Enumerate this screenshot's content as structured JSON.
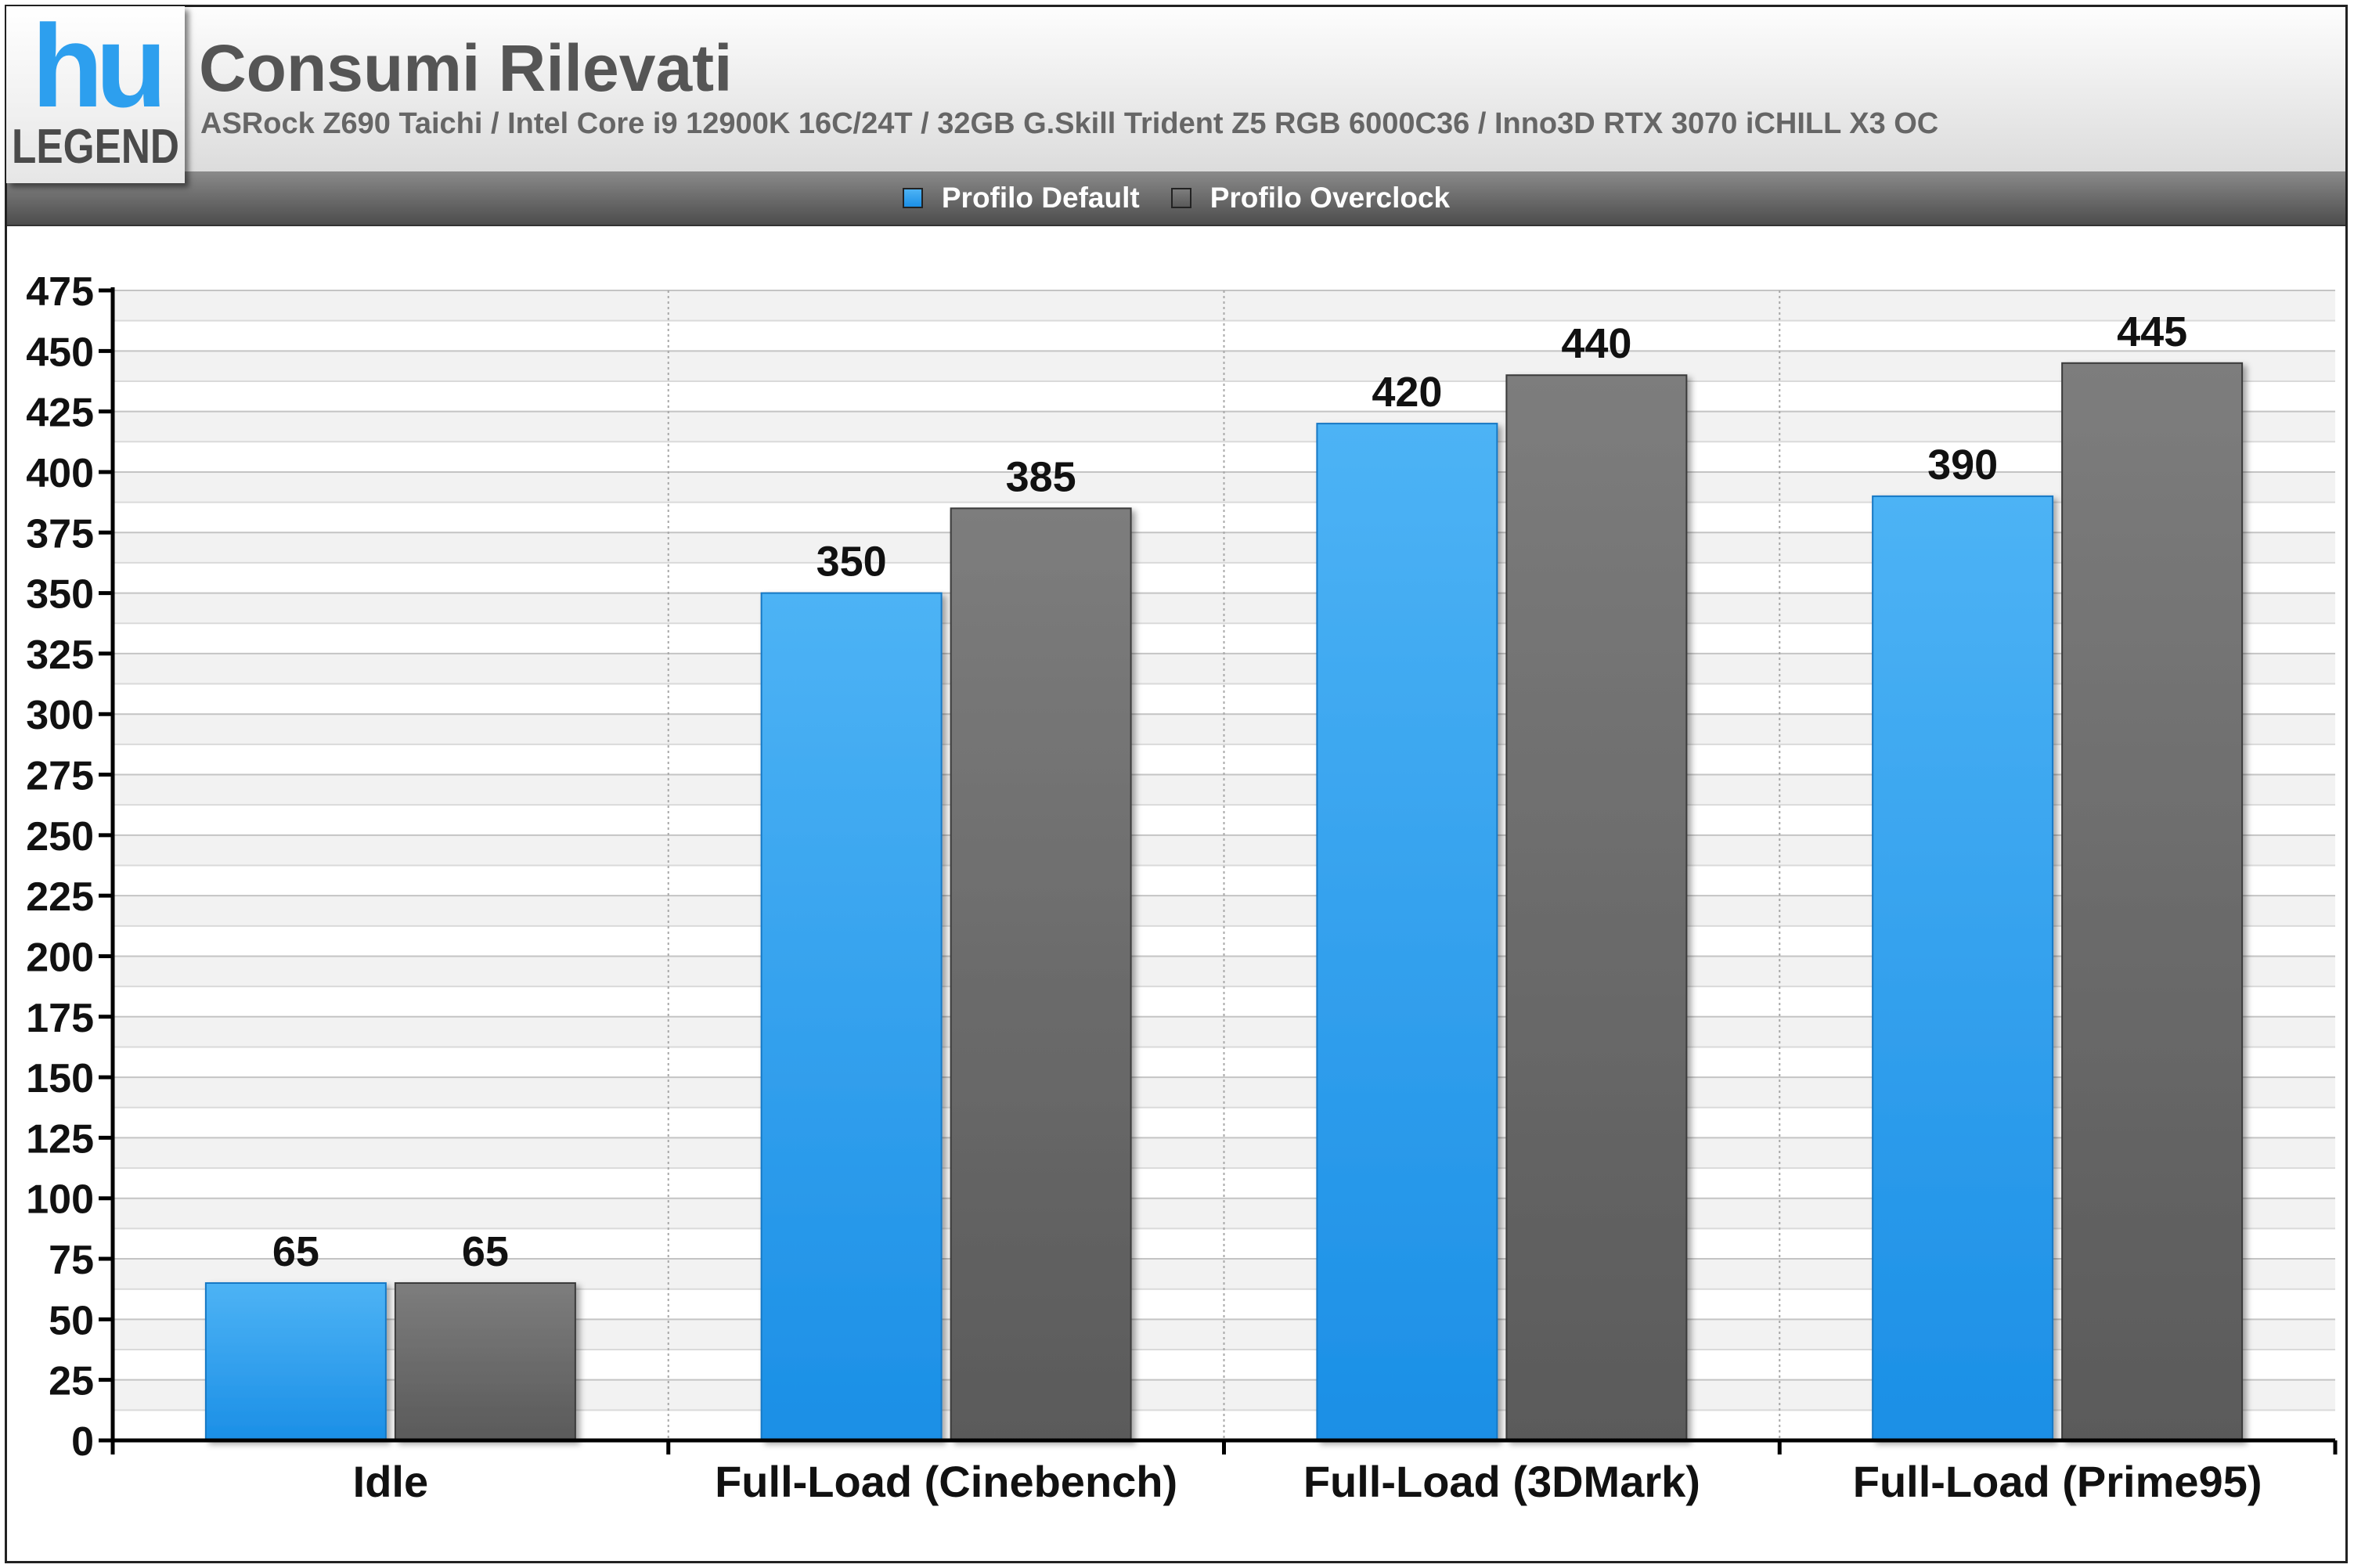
{
  "header": {
    "logo_top": "hu",
    "logo_bottom": "LEGEND",
    "title": "Consumi Rilevati",
    "subtitle": "ASRock Z690 Taichi / Intel Core i9 12900K 16C/24T / 32GB G.Skill Trident Z5 RGB 6000C36 / Inno3D RTX 3070 iCHILL X3 OC"
  },
  "legend": [
    {
      "label": "Profilo Default",
      "color": "#2d9fee"
    },
    {
      "label": "Profilo Overclock",
      "color": "#6e6e6e"
    }
  ],
  "chart_data": {
    "type": "bar",
    "title": "Consumi Rilevati",
    "subtitle": "ASRock Z690 Taichi / Intel Core i9 12900K 16C/24T / 32GB G.Skill Trident Z5 RGB 6000C36 / Inno3D RTX 3070 iCHILL X3 OC",
    "categories": [
      "Idle",
      "Full-Load (Cinebench)",
      "Full-Load (3DMark)",
      "Full-Load (Prime95)"
    ],
    "series": [
      {
        "name": "Profilo Default",
        "values": [
          65,
          350,
          420,
          390
        ],
        "color": "#2d9fee"
      },
      {
        "name": "Profilo Overclock",
        "values": [
          65,
          385,
          440,
          445
        ],
        "color": "#6e6e6e"
      }
    ],
    "ylim": [
      0,
      475
    ],
    "yticks": [
      0,
      25,
      50,
      75,
      100,
      125,
      150,
      175,
      200,
      225,
      250,
      275,
      300,
      325,
      350,
      375,
      400,
      425,
      450,
      475
    ],
    "grid": true,
    "legend_position": "top-center",
    "data_labels": true
  }
}
